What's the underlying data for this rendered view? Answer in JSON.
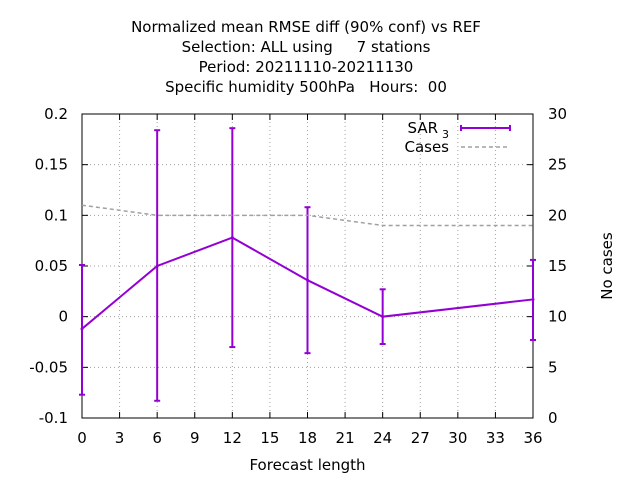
{
  "chart_data": {
    "type": "line",
    "title_lines": [
      "Normalized mean RMSE diff (90% conf) vs REF",
      "Selection: ALL using     7 stations",
      "Period: 20211110-20211130",
      "Specific humidity 500hPa   Hours:  00"
    ],
    "xlabel": "Forecast length",
    "ylabel": "",
    "y2label": "No cases",
    "xlim": [
      0,
      36
    ],
    "ylim": [
      -0.1,
      0.2
    ],
    "y2lim": [
      0,
      30
    ],
    "x_ticks": [
      0,
      3,
      6,
      9,
      12,
      15,
      18,
      21,
      24,
      27,
      30,
      33,
      36
    ],
    "x_tick_labels": [
      "0",
      "3",
      "6",
      "9",
      "12",
      "15",
      "18",
      "21",
      "24",
      "27",
      "30",
      "33",
      "36"
    ],
    "y_ticks": [
      -0.1,
      -0.05,
      0,
      0.05,
      0.1,
      0.15,
      0.2
    ],
    "y_tick_labels": [
      "-0.1",
      "-0.05",
      "0",
      "0.05",
      "0.1",
      "0.15",
      "0.2"
    ],
    "y2_ticks": [
      0,
      5,
      10,
      15,
      20,
      25,
      30
    ],
    "y2_tick_labels": [
      "0",
      "5",
      "10",
      "15",
      "20",
      "25",
      "30"
    ],
    "grid": true,
    "legend_position": "top-right",
    "series": [
      {
        "name": "SAR",
        "name_subscript": "3",
        "axis": "y1",
        "style": "line-errorbars",
        "color": "#9400d3",
        "x": [
          0,
          6,
          12,
          18,
          24,
          36
        ],
        "y": [
          -0.012,
          0.05,
          0.078,
          0.036,
          0.0,
          0.017
        ],
        "y_low": [
          -0.077,
          -0.083,
          -0.03,
          -0.036,
          -0.027,
          -0.023
        ],
        "y_high": [
          0.051,
          0.184,
          0.186,
          0.108,
          0.027,
          0.056
        ]
      },
      {
        "name": "Cases",
        "axis": "y2",
        "style": "dashed",
        "color": "#a0a0a0",
        "x": [
          0,
          6,
          12,
          18,
          24,
          36
        ],
        "y": [
          21,
          20,
          20,
          20,
          19,
          19
        ]
      }
    ]
  }
}
